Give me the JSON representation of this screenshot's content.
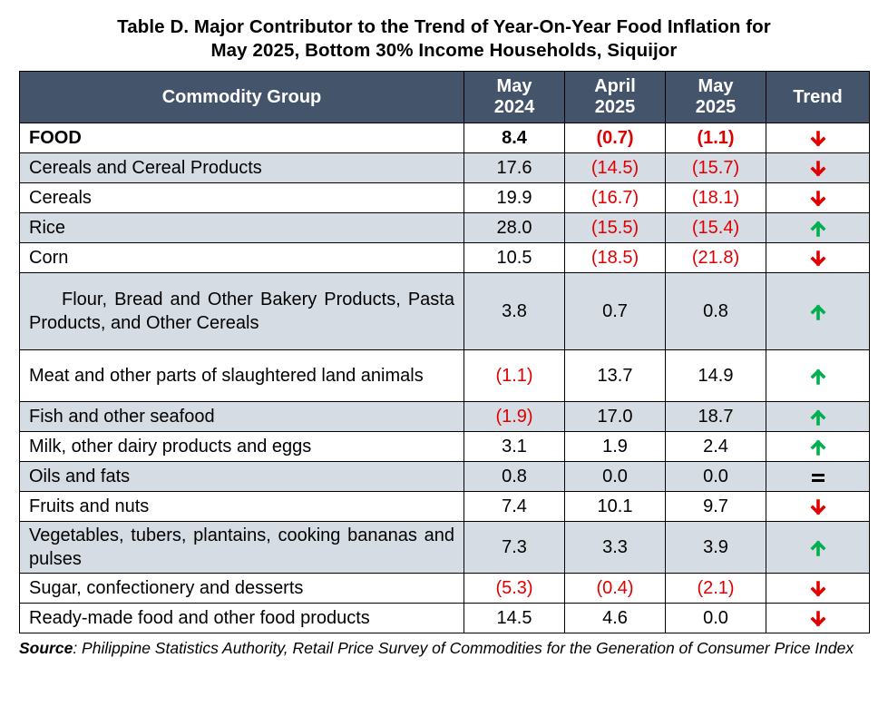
{
  "title": {
    "line1": "Table D. Major Contributor to the Trend of Year-On-Year Food Inflation for",
    "line2": "May 2025, Bottom 30% Income Households, Siquijor"
  },
  "headers": {
    "commodity": "Commodity Group",
    "col1_line1": "May",
    "col1_line2": "2024",
    "col2_line1": "April",
    "col2_line2": "2025",
    "col3_line1": "May",
    "col3_line2": "2025",
    "trend": "Trend"
  },
  "colors": {
    "header_bg": "#44546a",
    "shade": "#d6dce4",
    "negative": "#e00000",
    "up": "#00b050",
    "down": "#e00000"
  },
  "rows": [
    {
      "label": "FOOD",
      "may2024": "8.4",
      "apr2025": "(0.7)",
      "may2025": "(1.1)",
      "trend": "down"
    },
    {
      "label": "Cereals and Cereal Products",
      "may2024": "17.6",
      "apr2025": "(14.5)",
      "may2025": "(15.7)",
      "trend": "down"
    },
    {
      "label": "Cereals",
      "may2024": "19.9",
      "apr2025": "(16.7)",
      "may2025": "(18.1)",
      "trend": "down"
    },
    {
      "label": "Rice",
      "may2024": "28.0",
      "apr2025": "(15.5)",
      "may2025": "(15.4)",
      "trend": "up"
    },
    {
      "label": "Corn",
      "may2024": "10.5",
      "apr2025": "(18.5)",
      "may2025": "(21.8)",
      "trend": "down"
    },
    {
      "label": "Flour, Bread and Other Bakery Products, Pasta Products, and Other Cereals",
      "may2024": "3.8",
      "apr2025": "0.7",
      "may2025": "0.8",
      "trend": "up"
    },
    {
      "label": "Meat and other parts of slaughtered land animals",
      "may2024": "(1.1)",
      "apr2025": "13.7",
      "may2025": "14.9",
      "trend": "up"
    },
    {
      "label": "Fish and other seafood",
      "may2024": "(1.9)",
      "apr2025": "17.0",
      "may2025": "18.7",
      "trend": "up"
    },
    {
      "label": "Milk, other dairy products and eggs",
      "may2024": "3.1",
      "apr2025": "1.9",
      "may2025": "2.4",
      "trend": "up"
    },
    {
      "label": "Oils and fats",
      "may2024": "0.8",
      "apr2025": "0.0",
      "may2025": "0.0",
      "trend": "equal"
    },
    {
      "label": "Fruits and nuts",
      "may2024": "7.4",
      "apr2025": "10.1",
      "may2025": "9.7",
      "trend": "down"
    },
    {
      "label": "Vegetables, tubers, plantains, cooking bananas and pulses",
      "may2024": "7.3",
      "apr2025": "3.3",
      "may2025": "3.9",
      "trend": "up"
    },
    {
      "label": "Sugar, confectionery and desserts",
      "may2024": "(5.3)",
      "apr2025": "(0.4)",
      "may2025": "(2.1)",
      "trend": "down"
    },
    {
      "label": "Ready-made food and other food products",
      "may2024": "14.5",
      "apr2025": "4.6",
      "may2025": "0.0",
      "trend": "down"
    }
  ],
  "source": {
    "label": "Source",
    "text": ": Philippine Statistics Authority, Retail Price Survey of Commodities for the Generation of Consumer Price Index"
  }
}
